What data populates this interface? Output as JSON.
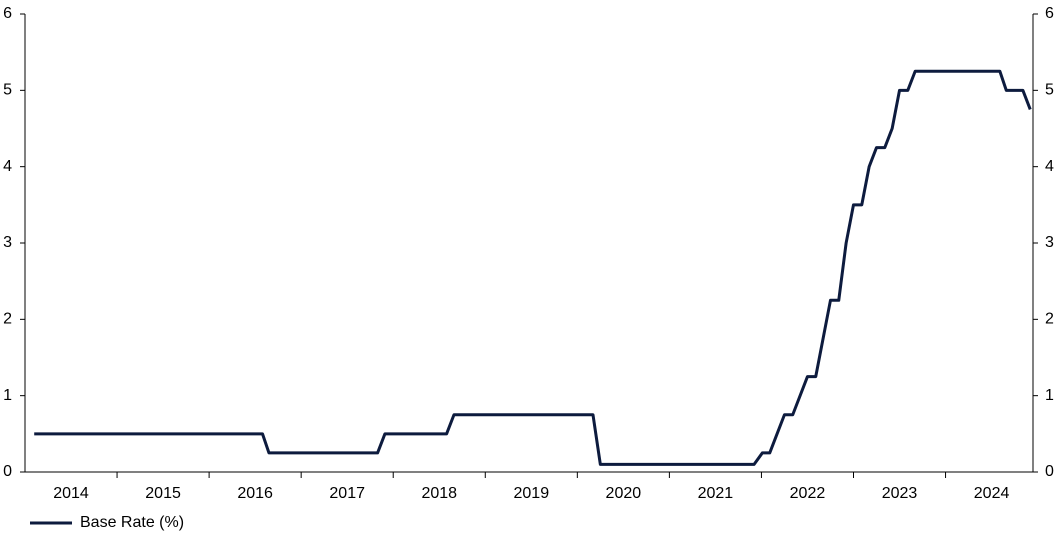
{
  "chart_data": {
    "type": "line",
    "x": [
      2014.1,
      2016.58,
      2016.65,
      2017.83,
      2017.91,
      2018.58,
      2018.66,
      2020.17,
      2020.25,
      2021.92,
      2022.01,
      2022.09,
      2022.17,
      2022.25,
      2022.34,
      2022.5,
      2022.59,
      2022.75,
      2022.84,
      2022.92,
      2023.0,
      2023.09,
      2023.17,
      2023.25,
      2023.34,
      2023.42,
      2023.5,
      2023.59,
      2023.67,
      2024.59,
      2024.66,
      2024.84,
      2024.92
    ],
    "series": [
      {
        "name": "Base Rate (%)",
        "color": "#0d1b3e",
        "values": [
          0.5,
          0.5,
          0.25,
          0.25,
          0.5,
          0.5,
          0.75,
          0.75,
          0.1,
          0.1,
          0.25,
          0.25,
          0.5,
          0.75,
          0.75,
          1.25,
          1.25,
          2.25,
          2.25,
          3,
          3.5,
          3.5,
          4,
          4.25,
          4.25,
          4.5,
          5,
          5,
          5.25,
          5.25,
          5,
          5,
          4.75
        ]
      }
    ],
    "xlim": [
      2014,
      2024.95
    ],
    "xticks": [
      {
        "value": 2014.5,
        "label": "2014"
      },
      {
        "value": 2015.5,
        "label": "2015"
      },
      {
        "value": 2016.5,
        "label": "2016"
      },
      {
        "value": 2017.5,
        "label": "2017"
      },
      {
        "value": 2018.5,
        "label": "2018"
      },
      {
        "value": 2019.5,
        "label": "2019"
      },
      {
        "value": 2020.5,
        "label": "2020"
      },
      {
        "value": 2021.5,
        "label": "2021"
      },
      {
        "value": 2022.5,
        "label": "2022"
      },
      {
        "value": 2023.5,
        "label": "2023"
      },
      {
        "value": 2024.5,
        "label": "2024"
      }
    ],
    "ylim": [
      0,
      6
    ],
    "yticks": [
      0,
      1,
      2,
      3,
      4,
      5,
      6
    ],
    "y2lim": [
      0,
      6
    ],
    "y2ticks": [
      0,
      1,
      2,
      3,
      4,
      5,
      6
    ],
    "legend": "bottom-left"
  }
}
